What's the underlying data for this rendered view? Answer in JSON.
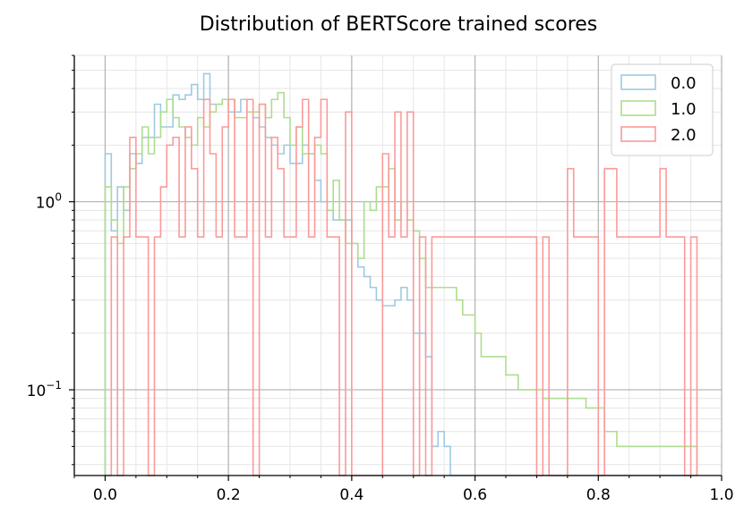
{
  "chart_data": {
    "type": "histogram",
    "title": "Distribution of BERTScore trained scores",
    "xlabel": "",
    "ylabel": "",
    "x_scale": "linear",
    "y_scale": "log",
    "xlim": [
      -0.05,
      1.0
    ],
    "ylim": [
      0.035,
      6
    ],
    "grid": {
      "major": true,
      "minor": true
    },
    "legend_position": "top-right",
    "x_ticks": [
      "0.0",
      "0.2",
      "0.4",
      "0.6",
      "0.8",
      "1.0"
    ],
    "x_tick_values": [
      0,
      0.2,
      0.4,
      0.6,
      0.8,
      1.0
    ],
    "y_ticks": [
      {
        "value": 0.1,
        "base": "10",
        "exp": "−1"
      },
      {
        "value": 1,
        "base": "10",
        "exp": "0"
      }
    ],
    "bin_edges": [
      0.0,
      0.01,
      0.02,
      0.03,
      0.04,
      0.05,
      0.06,
      0.07,
      0.08,
      0.09,
      0.1,
      0.11,
      0.12,
      0.13,
      0.14,
      0.15,
      0.16,
      0.17,
      0.18,
      0.19,
      0.2,
      0.21,
      0.22,
      0.23,
      0.24,
      0.25,
      0.26,
      0.27,
      0.28,
      0.29,
      0.3,
      0.31,
      0.32,
      0.33,
      0.34,
      0.35,
      0.36,
      0.37,
      0.38,
      0.39,
      0.4,
      0.41,
      0.42,
      0.43,
      0.44,
      0.45,
      0.46,
      0.47,
      0.48,
      0.49,
      0.5,
      0.51,
      0.52,
      0.53,
      0.54,
      0.55,
      0.56,
      0.57,
      0.58,
      0.59,
      0.6,
      0.61,
      0.62,
      0.63,
      0.64,
      0.65,
      0.66,
      0.67,
      0.68,
      0.69,
      0.7,
      0.71,
      0.72,
      0.73,
      0.74,
      0.75,
      0.76,
      0.77,
      0.78,
      0.79,
      0.8,
      0.81,
      0.82,
      0.83,
      0.84,
      0.85,
      0.86,
      0.87,
      0.88,
      0.89,
      0.9,
      0.91,
      0.92,
      0.93,
      0.94,
      0.95,
      0.96
    ],
    "series": [
      {
        "name": "0.0",
        "color": "#9ecae1",
        "values": [
          1.8,
          0.7,
          1.2,
          0.9,
          1.8,
          1.6,
          2.2,
          2.2,
          3.3,
          2.5,
          2.5,
          3.7,
          3.5,
          3.7,
          4.2,
          3.5,
          4.8,
          3.3,
          3.3,
          3.5,
          3.0,
          3.0,
          3.5,
          3.0,
          2.8,
          2.5,
          2.2,
          2.0,
          1.8,
          2.0,
          1.6,
          1.6,
          2.0,
          1.8,
          1.3,
          1.0,
          0.9,
          0.8,
          0.8,
          0.8,
          0.6,
          0.45,
          0.4,
          0.35,
          0.3,
          0.28,
          0.28,
          0.3,
          0.35,
          0.3,
          0.2,
          0.2,
          0.15,
          0.05,
          0.06,
          0.05,
          0.035,
          0.035,
          0.035,
          0.035,
          0.035,
          0.035,
          0.035,
          0.035,
          0.035,
          0.035,
          0.035,
          0.035,
          0.035,
          0.035,
          0.035,
          0.035,
          0.035,
          0.035,
          0.035,
          0.035,
          0.035,
          0.035,
          0.035,
          0.035,
          0.035,
          0.035,
          0.035,
          0.035,
          0.035,
          0.035,
          0.035,
          0.035,
          0.035,
          0.035,
          0.035,
          0.035,
          0.035,
          0.035,
          0.035,
          0.035
        ]
      },
      {
        "name": "1.0",
        "color": "#addd8e",
        "values": [
          1.2,
          0.8,
          0.6,
          1.2,
          1.5,
          1.8,
          2.5,
          1.8,
          2.2,
          3.0,
          3.5,
          2.8,
          2.5,
          2.2,
          2.0,
          2.8,
          2.5,
          3.0,
          3.3,
          3.5,
          3.5,
          2.8,
          2.8,
          3.0,
          3.0,
          3.3,
          2.8,
          3.5,
          3.8,
          2.8,
          2.0,
          2.5,
          1.8,
          1.8,
          2.0,
          1.8,
          0.9,
          1.3,
          0.8,
          0.6,
          0.6,
          0.5,
          1.0,
          0.9,
          1.2,
          1.2,
          1.5,
          0.8,
          1.0,
          0.8,
          0.7,
          0.5,
          0.35,
          0.35,
          0.35,
          0.35,
          0.35,
          0.3,
          0.25,
          0.25,
          0.2,
          0.15,
          0.15,
          0.15,
          0.15,
          0.12,
          0.12,
          0.1,
          0.1,
          0.1,
          0.1,
          0.09,
          0.09,
          0.09,
          0.09,
          0.09,
          0.09,
          0.09,
          0.08,
          0.08,
          0.08,
          0.06,
          0.06,
          0.05,
          0.05,
          0.05,
          0.05,
          0.05,
          0.05,
          0.05,
          0.05,
          0.05,
          0.05,
          0.05,
          0.05,
          0.05
        ]
      },
      {
        "name": "2.0",
        "color": "#fb9a99",
        "values": [
          0.035,
          0.65,
          0.035,
          0.65,
          2.2,
          0.65,
          0.65,
          0.035,
          0.65,
          1.2,
          2.0,
          2.2,
          0.65,
          2.5,
          1.5,
          0.65,
          3.5,
          1.8,
          0.65,
          2.5,
          3.5,
          0.65,
          0.65,
          3.5,
          0.035,
          3.3,
          0.65,
          2.2,
          1.5,
          0.65,
          0.65,
          2.5,
          3.5,
          0.65,
          2.2,
          3.5,
          0.65,
          0.65,
          0.035,
          3.0,
          0.035,
          0.035,
          0.035,
          0.035,
          0.035,
          1.8,
          0.65,
          3.0,
          0.65,
          3.0,
          0.035,
          0.65,
          0.035,
          0.65,
          0.65,
          0.65,
          0.65,
          0.65,
          0.65,
          0.65,
          0.65,
          0.65,
          0.65,
          0.65,
          0.65,
          0.65,
          0.65,
          0.65,
          0.65,
          0.65,
          0.035,
          0.65,
          0.035,
          0.035,
          0.035,
          1.5,
          0.65,
          0.65,
          0.65,
          0.65,
          0.035,
          1.5,
          1.5,
          0.65,
          0.65,
          0.65,
          0.65,
          0.65,
          0.65,
          0.65,
          1.5,
          0.65,
          0.65,
          0.65,
          0.035,
          0.65
        ]
      }
    ]
  }
}
